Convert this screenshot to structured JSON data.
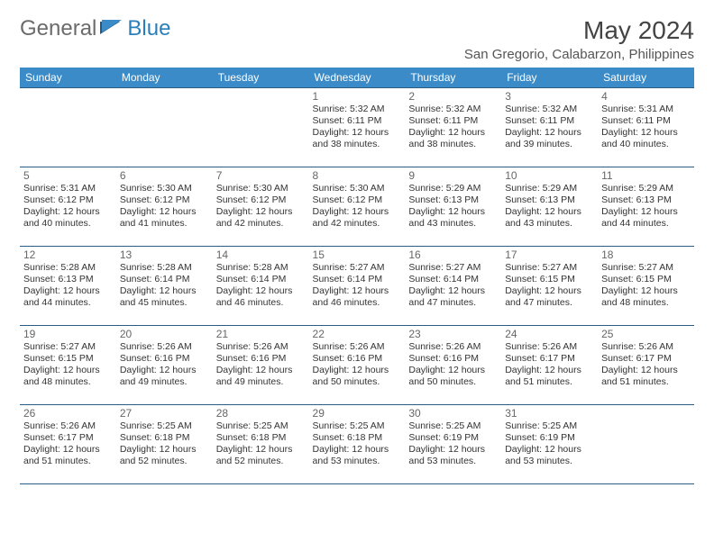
{
  "header": {
    "logo_general": "General",
    "logo_blue": "Blue",
    "month_title": "May 2024",
    "location": "San Gregorio, Calabarzon, Philippines"
  },
  "colors": {
    "header_bg": "#3b8bc8",
    "header_text": "#ffffff",
    "row_border": "#2a5c85",
    "daynum_color": "#666666",
    "body_text": "#333333",
    "logo_grey": "#6b6b6b",
    "logo_blue": "#2a7fba"
  },
  "day_headers": [
    "Sunday",
    "Monday",
    "Tuesday",
    "Wednesday",
    "Thursday",
    "Friday",
    "Saturday"
  ],
  "weeks": [
    [
      null,
      null,
      null,
      {
        "n": "1",
        "sr": "5:32 AM",
        "ss": "6:11 PM",
        "dl": "12 hours and 38 minutes."
      },
      {
        "n": "2",
        "sr": "5:32 AM",
        "ss": "6:11 PM",
        "dl": "12 hours and 38 minutes."
      },
      {
        "n": "3",
        "sr": "5:32 AM",
        "ss": "6:11 PM",
        "dl": "12 hours and 39 minutes."
      },
      {
        "n": "4",
        "sr": "5:31 AM",
        "ss": "6:11 PM",
        "dl": "12 hours and 40 minutes."
      }
    ],
    [
      {
        "n": "5",
        "sr": "5:31 AM",
        "ss": "6:12 PM",
        "dl": "12 hours and 40 minutes."
      },
      {
        "n": "6",
        "sr": "5:30 AM",
        "ss": "6:12 PM",
        "dl": "12 hours and 41 minutes."
      },
      {
        "n": "7",
        "sr": "5:30 AM",
        "ss": "6:12 PM",
        "dl": "12 hours and 42 minutes."
      },
      {
        "n": "8",
        "sr": "5:30 AM",
        "ss": "6:12 PM",
        "dl": "12 hours and 42 minutes."
      },
      {
        "n": "9",
        "sr": "5:29 AM",
        "ss": "6:13 PM",
        "dl": "12 hours and 43 minutes."
      },
      {
        "n": "10",
        "sr": "5:29 AM",
        "ss": "6:13 PM",
        "dl": "12 hours and 43 minutes."
      },
      {
        "n": "11",
        "sr": "5:29 AM",
        "ss": "6:13 PM",
        "dl": "12 hours and 44 minutes."
      }
    ],
    [
      {
        "n": "12",
        "sr": "5:28 AM",
        "ss": "6:13 PM",
        "dl": "12 hours and 44 minutes."
      },
      {
        "n": "13",
        "sr": "5:28 AM",
        "ss": "6:14 PM",
        "dl": "12 hours and 45 minutes."
      },
      {
        "n": "14",
        "sr": "5:28 AM",
        "ss": "6:14 PM",
        "dl": "12 hours and 46 minutes."
      },
      {
        "n": "15",
        "sr": "5:27 AM",
        "ss": "6:14 PM",
        "dl": "12 hours and 46 minutes."
      },
      {
        "n": "16",
        "sr": "5:27 AM",
        "ss": "6:14 PM",
        "dl": "12 hours and 47 minutes."
      },
      {
        "n": "17",
        "sr": "5:27 AM",
        "ss": "6:15 PM",
        "dl": "12 hours and 47 minutes."
      },
      {
        "n": "18",
        "sr": "5:27 AM",
        "ss": "6:15 PM",
        "dl": "12 hours and 48 minutes."
      }
    ],
    [
      {
        "n": "19",
        "sr": "5:27 AM",
        "ss": "6:15 PM",
        "dl": "12 hours and 48 minutes."
      },
      {
        "n": "20",
        "sr": "5:26 AM",
        "ss": "6:16 PM",
        "dl": "12 hours and 49 minutes."
      },
      {
        "n": "21",
        "sr": "5:26 AM",
        "ss": "6:16 PM",
        "dl": "12 hours and 49 minutes."
      },
      {
        "n": "22",
        "sr": "5:26 AM",
        "ss": "6:16 PM",
        "dl": "12 hours and 50 minutes."
      },
      {
        "n": "23",
        "sr": "5:26 AM",
        "ss": "6:16 PM",
        "dl": "12 hours and 50 minutes."
      },
      {
        "n": "24",
        "sr": "5:26 AM",
        "ss": "6:17 PM",
        "dl": "12 hours and 51 minutes."
      },
      {
        "n": "25",
        "sr": "5:26 AM",
        "ss": "6:17 PM",
        "dl": "12 hours and 51 minutes."
      }
    ],
    [
      {
        "n": "26",
        "sr": "5:26 AM",
        "ss": "6:17 PM",
        "dl": "12 hours and 51 minutes."
      },
      {
        "n": "27",
        "sr": "5:25 AM",
        "ss": "6:18 PM",
        "dl": "12 hours and 52 minutes."
      },
      {
        "n": "28",
        "sr": "5:25 AM",
        "ss": "6:18 PM",
        "dl": "12 hours and 52 minutes."
      },
      {
        "n": "29",
        "sr": "5:25 AM",
        "ss": "6:18 PM",
        "dl": "12 hours and 53 minutes."
      },
      {
        "n": "30",
        "sr": "5:25 AM",
        "ss": "6:19 PM",
        "dl": "12 hours and 53 minutes."
      },
      {
        "n": "31",
        "sr": "5:25 AM",
        "ss": "6:19 PM",
        "dl": "12 hours and 53 minutes."
      },
      null
    ]
  ],
  "labels": {
    "sunrise": "Sunrise: ",
    "sunset": "Sunset: ",
    "daylight": "Daylight: "
  }
}
